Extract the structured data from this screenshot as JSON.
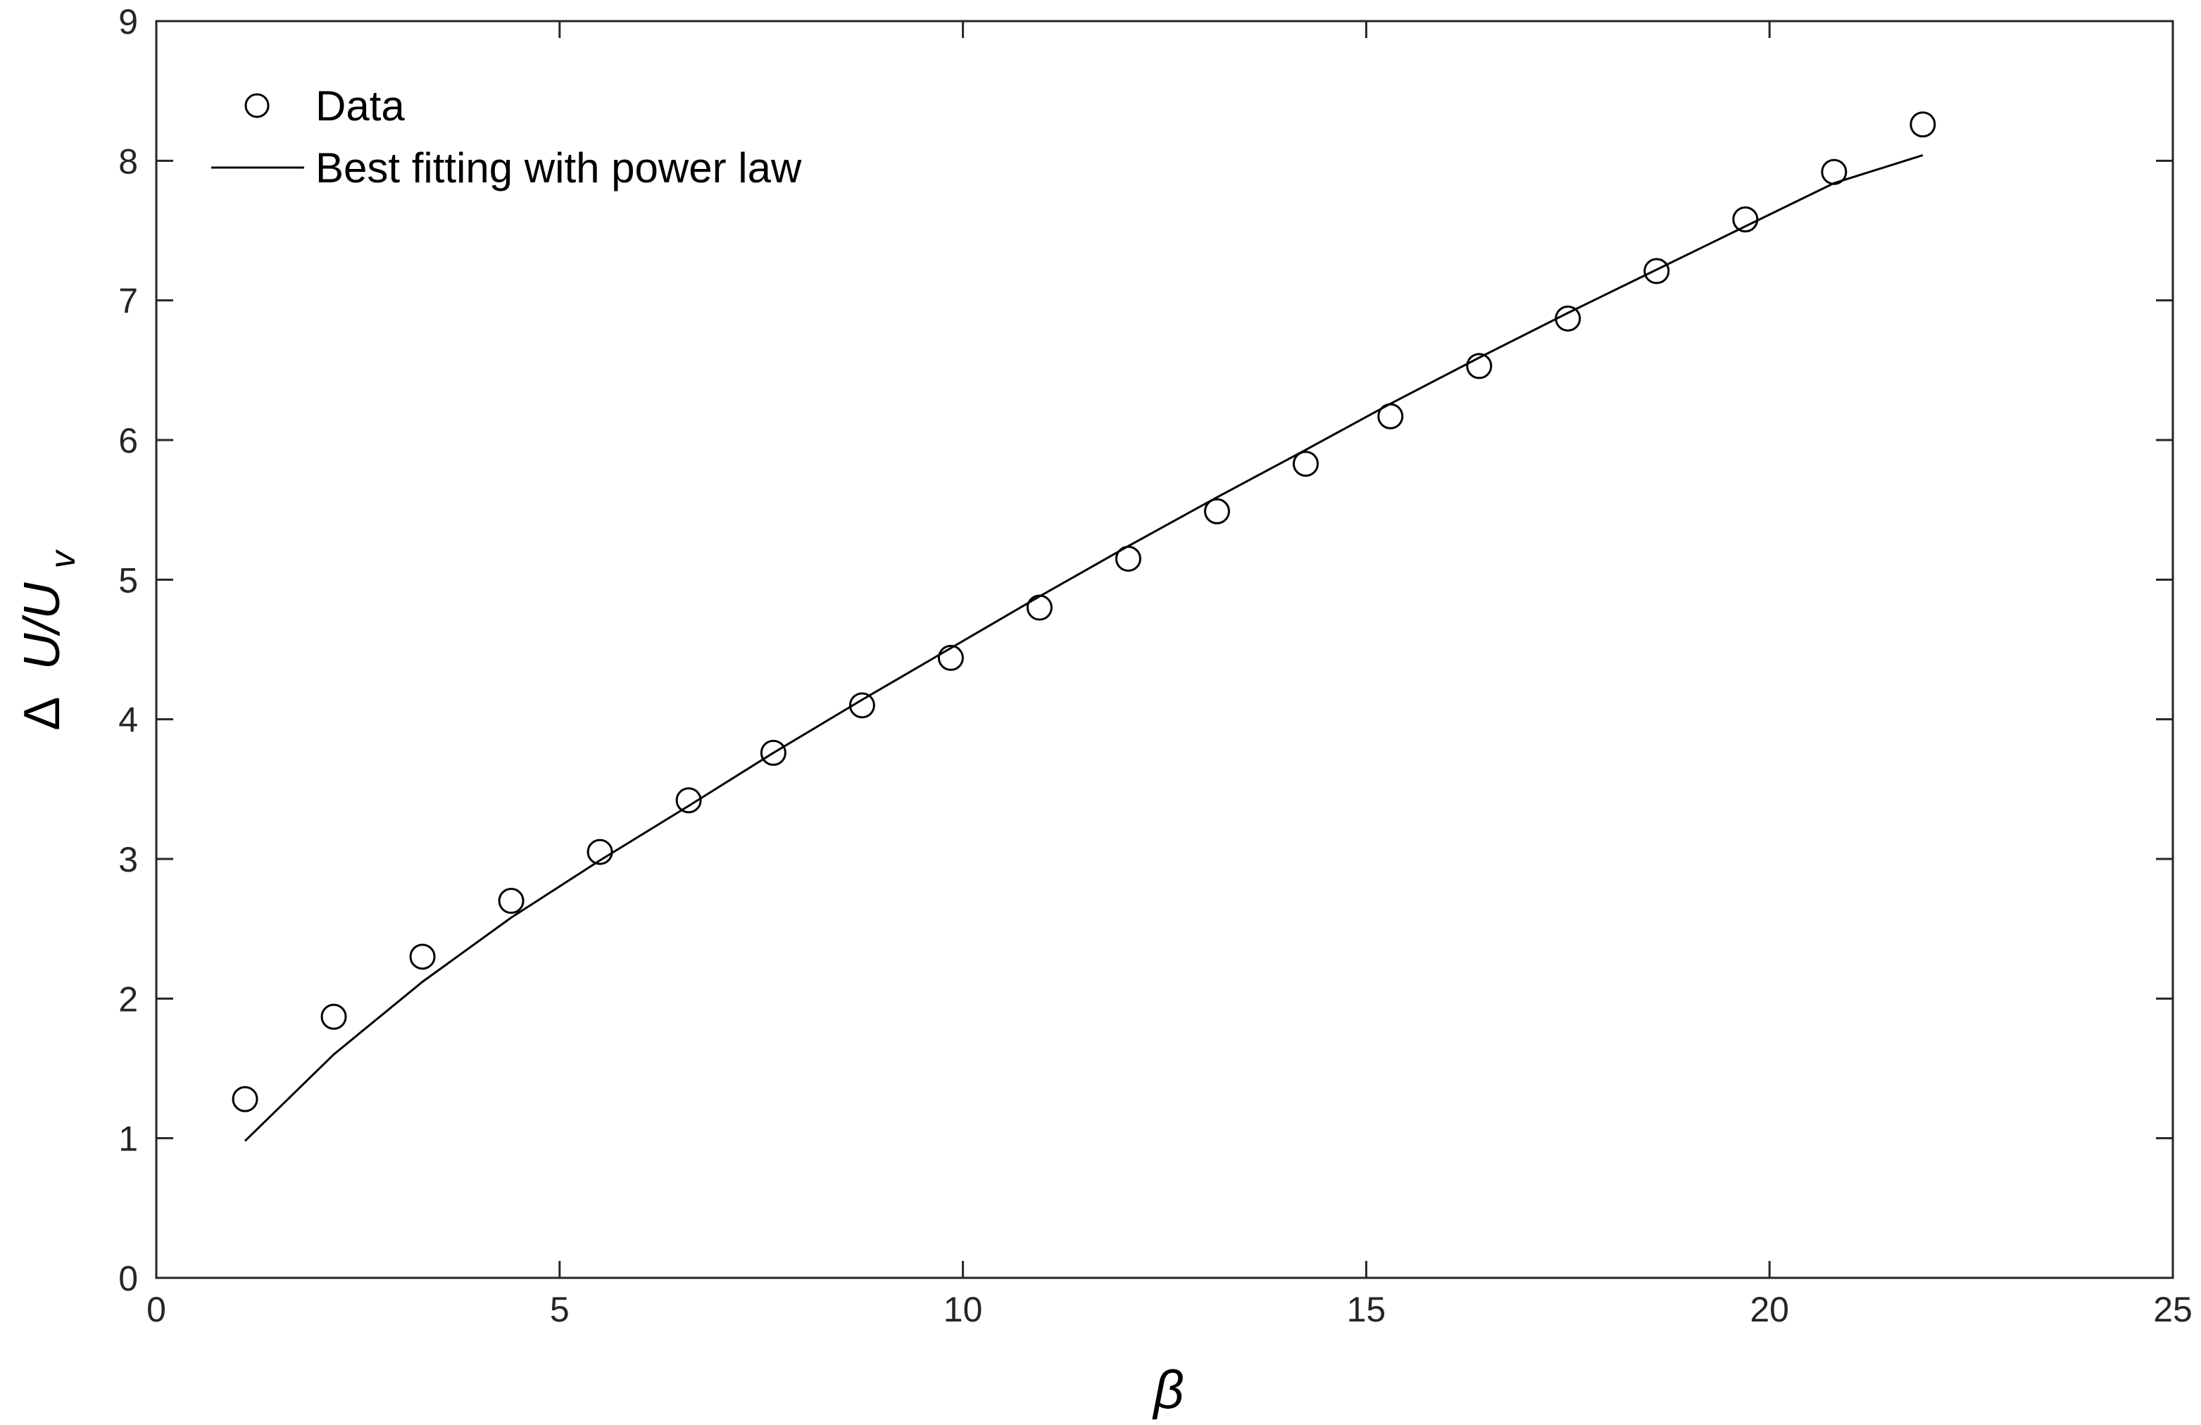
{
  "chart_data": {
    "type": "scatter",
    "xlabel": "β",
    "ylabel": {
      "delta": "Δ",
      "main": "U/U",
      "subscript": "v"
    },
    "xlim": [
      0,
      25
    ],
    "ylim": [
      0,
      9
    ],
    "xticks": [
      "0",
      "5",
      "10",
      "15",
      "20",
      "25"
    ],
    "yticks": [
      "0",
      "1",
      "2",
      "3",
      "4",
      "5",
      "6",
      "7",
      "8",
      "9"
    ],
    "grid": false,
    "legend_position": "top-left",
    "series": [
      {
        "name": "Data",
        "style": "markers",
        "marker": "open-circle",
        "x": [
          1.1,
          2.2,
          3.3,
          4.4,
          5.5,
          6.6,
          7.65,
          8.75,
          9.85,
          10.95,
          12.05,
          13.15,
          14.25,
          15.3,
          16.4,
          17.5,
          18.6,
          19.7,
          20.8,
          21.9
        ],
        "y": [
          1.28,
          1.87,
          2.3,
          2.7,
          3.05,
          3.42,
          3.76,
          4.1,
          4.44,
          4.8,
          5.15,
          5.49,
          5.83,
          6.17,
          6.53,
          6.87,
          7.21,
          7.58,
          7.92,
          8.26
        ]
      },
      {
        "name": "Best fitting with power law",
        "style": "line",
        "x": [
          1.1,
          2.2,
          3.3,
          4.4,
          5.5,
          6.6,
          7.65,
          8.75,
          9.85,
          10.95,
          12.05,
          13.15,
          14.25,
          15.3,
          16.4,
          17.5,
          18.6,
          19.7,
          20.8,
          21.9
        ],
        "y": [
          0.98,
          1.6,
          2.12,
          2.58,
          2.99,
          3.38,
          3.76,
          4.14,
          4.51,
          4.88,
          5.24,
          5.59,
          5.93,
          6.26,
          6.59,
          6.91,
          7.22,
          7.53,
          7.84,
          8.04
        ]
      }
    ]
  },
  "colors": {
    "axis": "#262626",
    "series": "#000000",
    "background": "#ffffff"
  }
}
